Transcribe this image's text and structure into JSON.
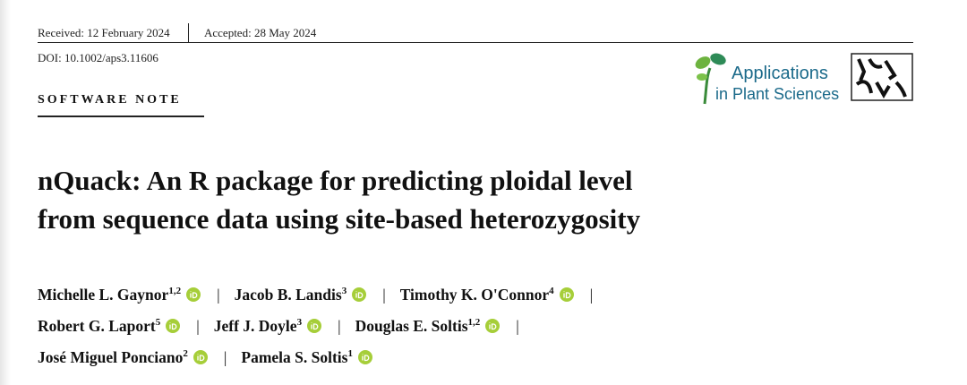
{
  "header": {
    "received": "Received: 12 February 2024",
    "accepted": "Accepted: 28 May 2024",
    "doi": "DOI: 10.1002/aps3.11606",
    "section": "SOFTWARE NOTE",
    "journal": [
      "Applications",
      "in Plant Sciences"
    ]
  },
  "title": [
    "nQuack: An R package for predicting ploidal level",
    "from sequence data using site-based heterozygosity"
  ],
  "authors": [
    {
      "name": "Michelle L. Gaynor",
      "sup": "1,2"
    },
    {
      "name": "Jacob B. Landis",
      "sup": "3"
    },
    {
      "name": "Timothy K. O'Connor",
      "sup": "4"
    },
    {
      "name": "Robert G. Laport",
      "sup": "5"
    },
    {
      "name": "Jeff J. Doyle",
      "sup": "3"
    },
    {
      "name": "Douglas E. Soltis",
      "sup": "1,2"
    },
    {
      "name": "José Miguel Ponciano",
      "sup": "2"
    },
    {
      "name": "Pamela S. Soltis",
      "sup": "1"
    }
  ]
}
